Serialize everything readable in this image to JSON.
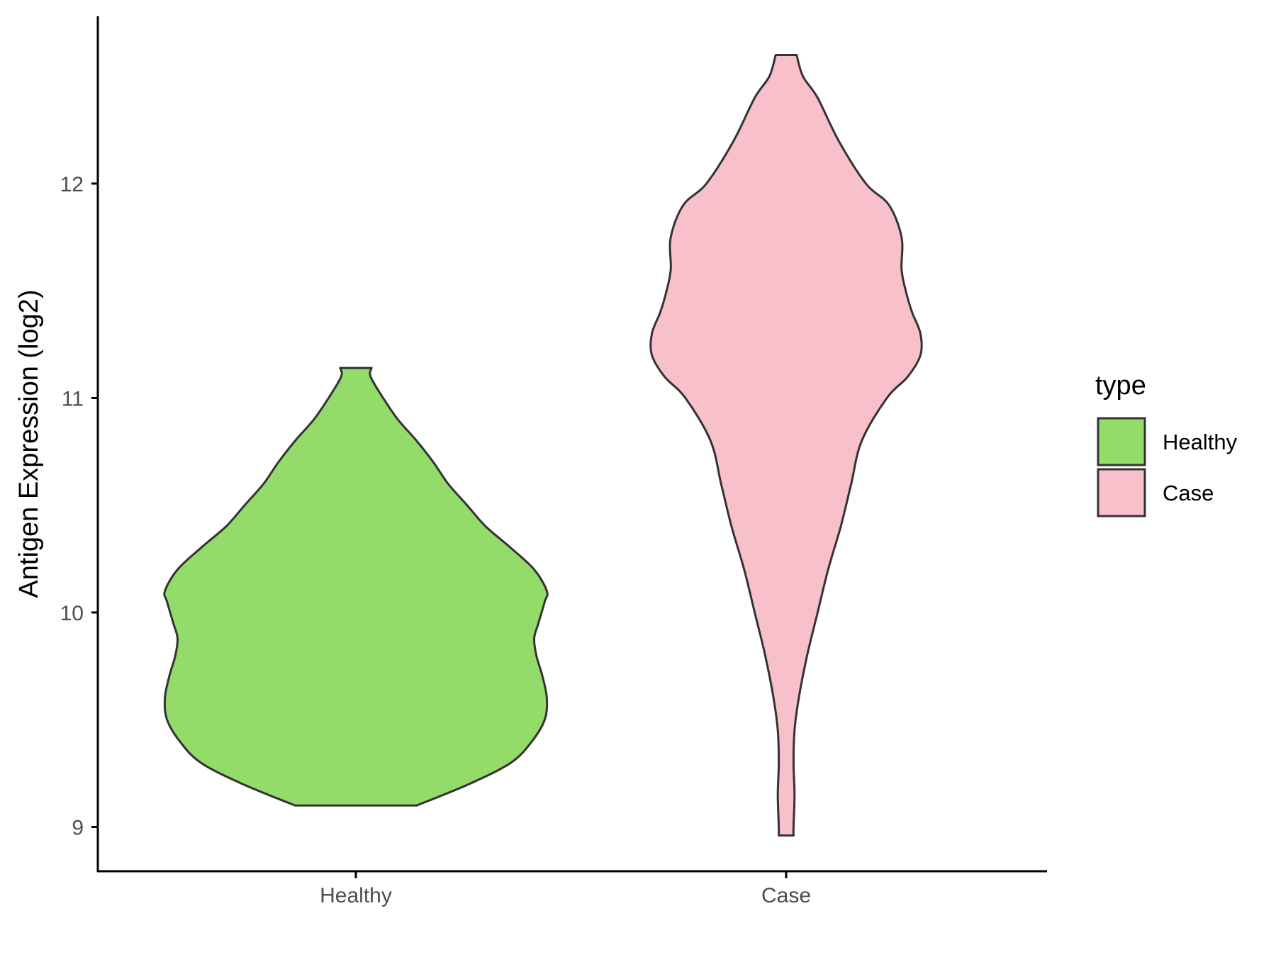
{
  "chart_data": {
    "type": "violin",
    "xlabel": "",
    "ylabel": "Antigen Expression (log2)",
    "categories": [
      "Healthy",
      "Case"
    ],
    "ylim": [
      8.79,
      12.78
    ],
    "yticks": [
      9,
      10,
      11,
      12
    ],
    "grid": false,
    "legend": {
      "title": "type",
      "placement": "right",
      "entries": [
        {
          "label": "Healthy",
          "color": "#93DC6A"
        },
        {
          "label": "Case",
          "color": "#F8C0CB"
        }
      ]
    },
    "series": [
      {
        "name": "Healthy",
        "color": "#93DC6A",
        "min": 9.1,
        "max": 11.14,
        "profile": [
          [
            9.1,
            0.29
          ],
          [
            9.2,
            0.54
          ],
          [
            9.3,
            0.74
          ],
          [
            9.4,
            0.84
          ],
          [
            9.5,
            0.9
          ],
          [
            9.6,
            0.91
          ],
          [
            9.7,
            0.89
          ],
          [
            9.8,
            0.86
          ],
          [
            9.88,
            0.85
          ],
          [
            9.95,
            0.87
          ],
          [
            10.05,
            0.9
          ],
          [
            10.1,
            0.91
          ],
          [
            10.2,
            0.85
          ],
          [
            10.3,
            0.74
          ],
          [
            10.4,
            0.62
          ],
          [
            10.5,
            0.53
          ],
          [
            10.6,
            0.44
          ],
          [
            10.7,
            0.37
          ],
          [
            10.8,
            0.29
          ],
          [
            10.9,
            0.2
          ],
          [
            11.0,
            0.13
          ],
          [
            11.1,
            0.07
          ],
          [
            11.14,
            0.075
          ]
        ]
      },
      {
        "name": "Case",
        "color": "#F8C0CB",
        "min": 8.96,
        "max": 12.6,
        "profile": [
          [
            8.96,
            0.035
          ],
          [
            9.0,
            0.035
          ],
          [
            9.15,
            0.04
          ],
          [
            9.3,
            0.035
          ],
          [
            9.45,
            0.04
          ],
          [
            9.6,
            0.06
          ],
          [
            9.8,
            0.1
          ],
          [
            10.0,
            0.15
          ],
          [
            10.2,
            0.2
          ],
          [
            10.4,
            0.26
          ],
          [
            10.6,
            0.31
          ],
          [
            10.8,
            0.36
          ],
          [
            11.0,
            0.48
          ],
          [
            11.1,
            0.58
          ],
          [
            11.2,
            0.64
          ],
          [
            11.3,
            0.64
          ],
          [
            11.4,
            0.6
          ],
          [
            11.5,
            0.57
          ],
          [
            11.6,
            0.55
          ],
          [
            11.75,
            0.55
          ],
          [
            11.9,
            0.49
          ],
          [
            12.0,
            0.38
          ],
          [
            12.2,
            0.25
          ],
          [
            12.4,
            0.15
          ],
          [
            12.5,
            0.08
          ],
          [
            12.6,
            0.05
          ]
        ]
      }
    ]
  },
  "colors": {
    "outline": "#333333",
    "axis": "#000000",
    "tick_text": "#4d4d4d"
  }
}
